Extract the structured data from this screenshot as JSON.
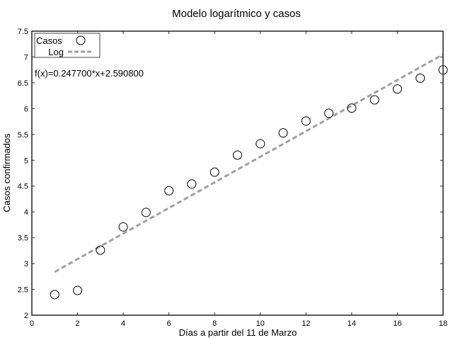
{
  "chart_data": {
    "type": "scatter",
    "title": "Modelo logarítmico y casos",
    "xlabel": "Días a partir del 11 de Marzo",
    "ylabel": "Casos confirmados",
    "xlim": [
      0,
      18
    ],
    "ylim": [
      2,
      7.5
    ],
    "xticks": [
      "0",
      "2",
      "4",
      "6",
      "8",
      "10",
      "12",
      "14",
      "16",
      "18"
    ],
    "yticks": [
      "2",
      "2.5",
      "3",
      "3.5",
      "4",
      "4.5",
      "5",
      "5.5",
      "6",
      "6.5",
      "7",
      "7.5"
    ],
    "grid": false,
    "legend": {
      "placement": "top-left",
      "entries": [
        "Casos",
        "Log"
      ]
    },
    "annotation": "f(x)=0.247700*x+2.590800",
    "series": [
      {
        "name": "Casos",
        "type": "scatter",
        "marker": "open-circle",
        "color": "#000000",
        "x": [
          1,
          2,
          3,
          4,
          5,
          6,
          7,
          8,
          9,
          10,
          11,
          12,
          13,
          14,
          15,
          16,
          17,
          18
        ],
        "y": [
          2.4,
          2.48,
          3.26,
          3.71,
          3.99,
          4.41,
          4.54,
          4.77,
          5.1,
          5.32,
          5.53,
          5.76,
          5.91,
          6.01,
          6.17,
          6.38,
          6.59,
          6.75
        ]
      },
      {
        "name": "Log",
        "type": "line",
        "style": "dashed",
        "color": "#a0a0a0",
        "slope": 0.2477,
        "intercept": 2.5908,
        "x": [
          1,
          18
        ]
      }
    ]
  }
}
